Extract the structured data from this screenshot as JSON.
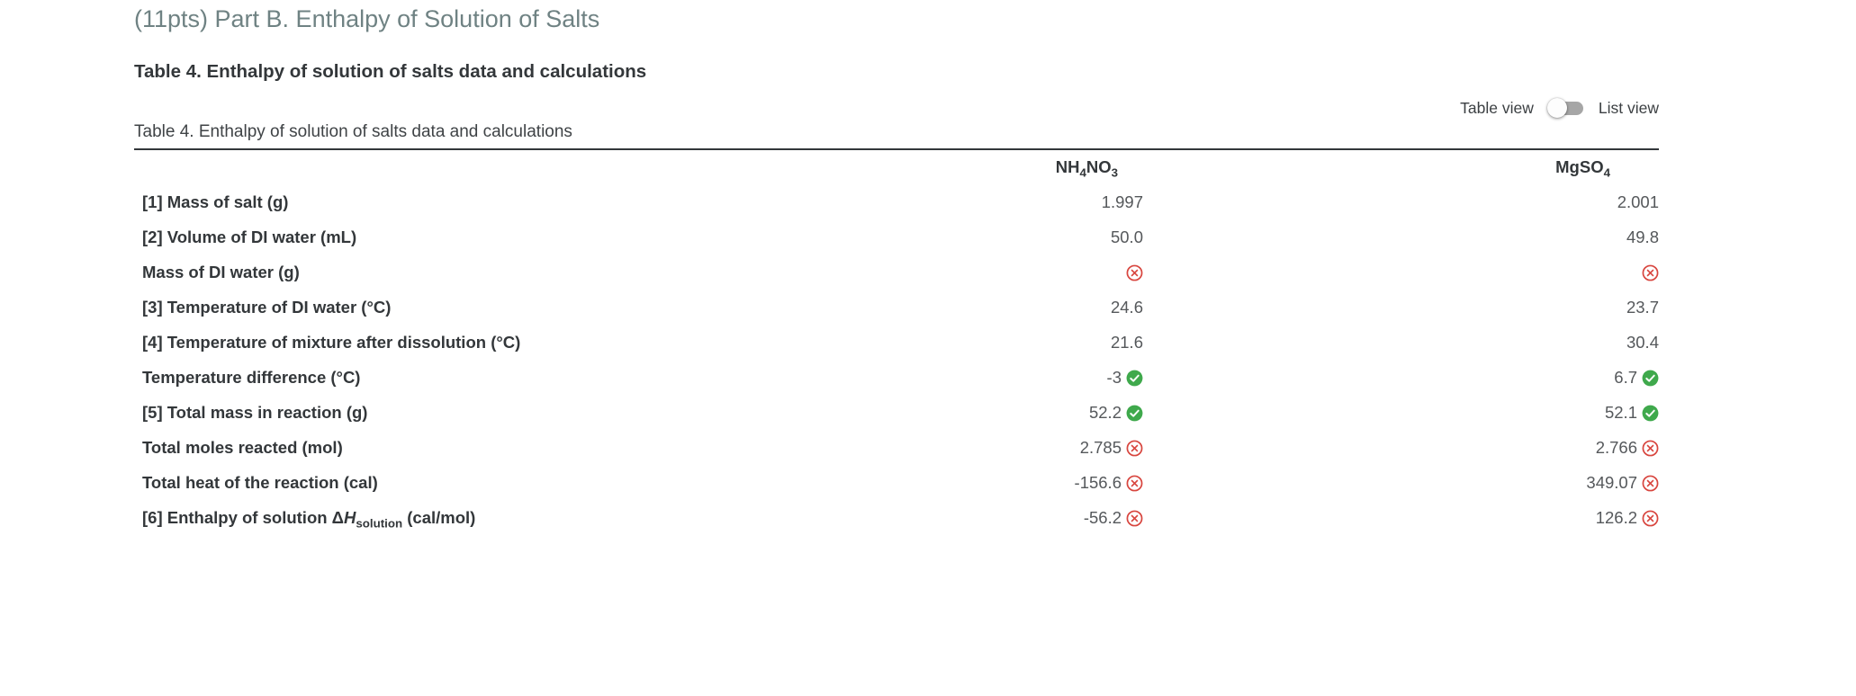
{
  "page": {
    "title": "(11pts) Part B. Enthalpy of Solution of Salts",
    "section_heading": "Table 4. Enthalpy of solution of salts data and calculations"
  },
  "view_toggle": {
    "left_label": "Table view",
    "right_label": "List view",
    "selected": "Table view"
  },
  "colors": {
    "title_accent": "#6f8283",
    "text_dark": "#33373a",
    "value_gray": "#55585b",
    "status_correct_green": "#3fa94c",
    "status_incorrect_red": "#d8453e"
  },
  "icons": {
    "correct": "check-circle-icon",
    "incorrect": "x-circle-icon"
  },
  "table": {
    "caption": "Table 4. Enthalpy of solution of salts data and calculations",
    "columns": [
      {
        "name": "NH4NO3",
        "segments": [
          {
            "text": "NH"
          },
          {
            "sub": "4"
          },
          {
            "text": "NO"
          },
          {
            "sub": "3"
          }
        ]
      },
      {
        "name": "MgSO4",
        "segments": [
          {
            "text": "MgSO"
          },
          {
            "sub": "4"
          }
        ]
      }
    ],
    "rows": [
      {
        "label_segments": [
          {
            "text": "[1] Mass of salt (g)"
          }
        ],
        "values": [
          {
            "value": "1.997",
            "status": null
          },
          {
            "value": "2.001",
            "status": null
          }
        ]
      },
      {
        "label_segments": [
          {
            "text": "[2] Volume of DI water (mL)"
          }
        ],
        "values": [
          {
            "value": "50.0",
            "status": null
          },
          {
            "value": "49.8",
            "status": null
          }
        ]
      },
      {
        "label_segments": [
          {
            "text": "Mass of DI water (g)"
          }
        ],
        "values": [
          {
            "value": "",
            "status": "incorrect"
          },
          {
            "value": "",
            "status": "incorrect"
          }
        ]
      },
      {
        "label_segments": [
          {
            "text": "[3] Temperature of DI water (°C)"
          }
        ],
        "values": [
          {
            "value": "24.6",
            "status": null
          },
          {
            "value": "23.7",
            "status": null
          }
        ]
      },
      {
        "label_segments": [
          {
            "text": "[4] Temperature of mixture after dissolution (°C)"
          }
        ],
        "values": [
          {
            "value": "21.6",
            "status": null
          },
          {
            "value": "30.4",
            "status": null
          }
        ]
      },
      {
        "label_segments": [
          {
            "text": "Temperature difference (°C)"
          }
        ],
        "values": [
          {
            "value": "-3",
            "status": "correct"
          },
          {
            "value": "6.7",
            "status": "correct"
          }
        ]
      },
      {
        "label_segments": [
          {
            "text": "[5] Total mass in reaction (g)"
          }
        ],
        "values": [
          {
            "value": "52.2",
            "status": "correct"
          },
          {
            "value": "52.1",
            "status": "correct"
          }
        ]
      },
      {
        "label_segments": [
          {
            "text": "Total moles reacted (mol)"
          }
        ],
        "values": [
          {
            "value": "2.785",
            "status": "incorrect"
          },
          {
            "value": "2.766",
            "status": "incorrect"
          }
        ]
      },
      {
        "label_segments": [
          {
            "text": "Total heat of the reaction (cal)"
          }
        ],
        "values": [
          {
            "value": "-156.6",
            "status": "incorrect"
          },
          {
            "value": "349.07",
            "status": "incorrect"
          }
        ]
      },
      {
        "label_segments": [
          {
            "text": "[6] Enthalpy of solution Δ"
          },
          {
            "italic": "H"
          },
          {
            "sub": "solution"
          },
          {
            "text": " (cal/mol)"
          }
        ],
        "values": [
          {
            "value": "-56.2",
            "status": "incorrect"
          },
          {
            "value": "126.2",
            "status": "incorrect"
          }
        ]
      }
    ]
  }
}
